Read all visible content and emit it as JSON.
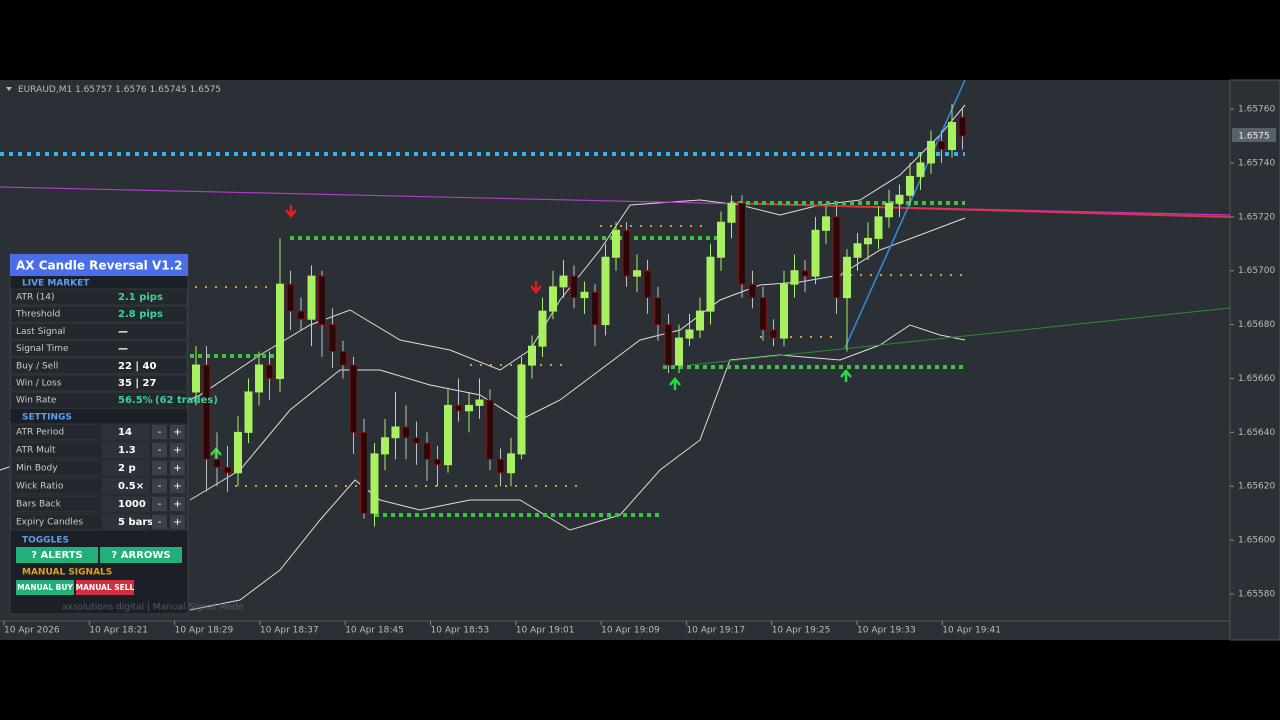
{
  "header": {
    "symbol": "EURAUD,M1"
  },
  "chart": {
    "price_ticks": [
      {
        "value": 1.6576,
        "label": "1.65760"
      },
      {
        "value": 1.6574,
        "label": "1.65740"
      },
      {
        "value": 1.6572,
        "label": "1.65720"
      },
      {
        "value": 1.657,
        "label": "1.65700"
      },
      {
        "value": 1.6568,
        "label": "1.65680"
      },
      {
        "value": 1.6566,
        "label": "1.65660"
      },
      {
        "value": 1.6564,
        "label": "1.65640"
      },
      {
        "value": 1.6562,
        "label": "1.65620"
      },
      {
        "value": 1.656,
        "label": "1.65600"
      },
      {
        "value": 1.6558,
        "label": "1.65580"
      }
    ],
    "time_labels": [
      "10 Apr 2026",
      "10 Apr 18:21",
      "10 Apr 18:29",
      "10 Apr 18:37",
      "10 Apr 18:45",
      "10 Apr 18:53",
      "10 Apr 19:01",
      "10 Apr 19:09",
      "10 Apr 19:17",
      "10 Apr 19:25",
      "10 Apr 19:33",
      "10 Apr 19:41"
    ],
    "candles": [
      [
        1.65655,
        1.65672,
        1.6565,
        1.65665
      ],
      [
        1.65665,
        1.65672,
        1.65618,
        1.6563
      ],
      [
        1.6563,
        1.6564,
        1.6562,
        1.65627
      ],
      [
        1.65627,
        1.65635,
        1.65618,
        1.65625
      ],
      [
        1.65625,
        1.65646,
        1.6562,
        1.6564
      ],
      [
        1.6564,
        1.6566,
        1.65636,
        1.65655
      ],
      [
        1.65655,
        1.6567,
        1.6565,
        1.65665
      ],
      [
        1.65665,
        1.6567,
        1.65652,
        1.6566
      ],
      [
        1.6566,
        1.65712,
        1.65655,
        1.65695
      ],
      [
        1.65695,
        1.657,
        1.65678,
        1.65685
      ],
      [
        1.65685,
        1.6569,
        1.65678,
        1.65682
      ],
      [
        1.65682,
        1.65702,
        1.65672,
        1.65698
      ],
      [
        1.65698,
        1.657,
        1.65668,
        1.6568
      ],
      [
        1.6568,
        1.65686,
        1.65664,
        1.6567
      ],
      [
        1.6567,
        1.65674,
        1.6566,
        1.65665
      ],
      [
        1.65665,
        1.65668,
        1.65632,
        1.6564
      ],
      [
        1.6564,
        1.65645,
        1.65608,
        1.6561
      ],
      [
        1.6561,
        1.65636,
        1.65605,
        1.65632
      ],
      [
        1.65632,
        1.65645,
        1.65626,
        1.65638
      ],
      [
        1.65638,
        1.65655,
        1.6563,
        1.65642
      ],
      [
        1.65642,
        1.6565,
        1.6563,
        1.65638
      ],
      [
        1.65638,
        1.65644,
        1.65628,
        1.65636
      ],
      [
        1.65636,
        1.6564,
        1.65622,
        1.6563
      ],
      [
        1.6563,
        1.65635,
        1.6562,
        1.65628
      ],
      [
        1.65628,
        1.65656,
        1.65625,
        1.6565
      ],
      [
        1.6565,
        1.6566,
        1.65644,
        1.65648
      ],
      [
        1.65648,
        1.65655,
        1.6564,
        1.6565
      ],
      [
        1.6565,
        1.6566,
        1.65645,
        1.65652
      ],
      [
        1.65652,
        1.65656,
        1.65626,
        1.6563
      ],
      [
        1.6563,
        1.65634,
        1.6562,
        1.65625
      ],
      [
        1.65625,
        1.65638,
        1.6562,
        1.65632
      ],
      [
        1.65632,
        1.65668,
        1.6563,
        1.65665
      ],
      [
        1.65665,
        1.65676,
        1.6566,
        1.65672
      ],
      [
        1.65672,
        1.6569,
        1.65668,
        1.65685
      ],
      [
        1.65685,
        1.657,
        1.65682,
        1.65694
      ],
      [
        1.65694,
        1.65704,
        1.6569,
        1.65698
      ],
      [
        1.65698,
        1.65702,
        1.65686,
        1.6569
      ],
      [
        1.6569,
        1.65696,
        1.65684,
        1.65692
      ],
      [
        1.65692,
        1.65695,
        1.65672,
        1.6568
      ],
      [
        1.6568,
        1.6571,
        1.65676,
        1.65705
      ],
      [
        1.65705,
        1.65718,
        1.657,
        1.65715
      ],
      [
        1.65715,
        1.65718,
        1.65694,
        1.65698
      ],
      [
        1.65698,
        1.65706,
        1.65692,
        1.657
      ],
      [
        1.657,
        1.65704,
        1.65684,
        1.6569
      ],
      [
        1.6569,
        1.65694,
        1.65674,
        1.6568
      ],
      [
        1.6568,
        1.65684,
        1.65662,
        1.65665
      ],
      [
        1.65665,
        1.6568,
        1.65662,
        1.65675
      ],
      [
        1.65675,
        1.65684,
        1.65672,
        1.65678
      ],
      [
        1.65678,
        1.6569,
        1.65675,
        1.65685
      ],
      [
        1.65685,
        1.6571,
        1.6568,
        1.65705
      ],
      [
        1.65705,
        1.65722,
        1.657,
        1.65718
      ],
      [
        1.65718,
        1.65728,
        1.65712,
        1.65725
      ],
      [
        1.65725,
        1.65728,
        1.6569,
        1.65695
      ],
      [
        1.65695,
        1.657,
        1.65686,
        1.6569
      ],
      [
        1.6569,
        1.65694,
        1.65674,
        1.65678
      ],
      [
        1.65678,
        1.65682,
        1.65672,
        1.65675
      ],
      [
        1.65675,
        1.657,
        1.65672,
        1.65695
      ],
      [
        1.65695,
        1.65706,
        1.6569,
        1.657
      ],
      [
        1.657,
        1.65704,
        1.65692,
        1.65698
      ],
      [
        1.65698,
        1.6572,
        1.65695,
        1.65715
      ],
      [
        1.65715,
        1.65724,
        1.6571,
        1.6572
      ],
      [
        1.6572,
        1.65724,
        1.65684,
        1.6569
      ],
      [
        1.6569,
        1.65708,
        1.6567,
        1.65705
      ],
      [
        1.65705,
        1.65714,
        1.657,
        1.6571
      ],
      [
        1.6571,
        1.65718,
        1.65704,
        1.65712
      ],
      [
        1.65712,
        1.65724,
        1.65708,
        1.6572
      ],
      [
        1.6572,
        1.6573,
        1.65716,
        1.65725
      ],
      [
        1.65725,
        1.65732,
        1.6572,
        1.65728
      ],
      [
        1.65728,
        1.6574,
        1.65724,
        1.65735
      ],
      [
        1.65735,
        1.65744,
        1.6573,
        1.6574
      ],
      [
        1.6574,
        1.65752,
        1.65736,
        1.65748
      ],
      [
        1.65748,
        1.65752,
        1.6574,
        1.65745
      ],
      [
        1.65745,
        1.65762,
        1.65742,
        1.65755
      ],
      [
        1.65757,
        1.6576,
        1.65745,
        1.6575
      ]
    ]
  },
  "panel": {
    "title": "AX Candle Reversal V1.2",
    "live_title": "LIVE MARKET",
    "live": [
      {
        "label": "ATR (14)",
        "value": "2.1 pips"
      },
      {
        "label": "Threshold",
        "value": "2.8 pips"
      },
      {
        "label": "Last Signal",
        "value": "—"
      },
      {
        "label": "Signal Time",
        "value": "—"
      },
      {
        "label": "Buy / Sell",
        "value": "22 | 40"
      },
      {
        "label": "Win / Loss",
        "value": "35 | 27"
      },
      {
        "label": "Win Rate",
        "value": "56.5%",
        "note": "(62 trades)"
      }
    ],
    "settings_title": "SETTINGS",
    "settings": [
      {
        "label": "ATR Period",
        "value": "14"
      },
      {
        "label": "ATR Mult",
        "value": "1.3"
      },
      {
        "label": "Min Body",
        "value": "2 p"
      },
      {
        "label": "Wick Ratio",
        "value": "0.5×"
      },
      {
        "label": "Bars Back",
        "value": "1000"
      },
      {
        "label": "Expiry Candles",
        "value": "5 bars"
      }
    ],
    "minus": "-",
    "plus": "+",
    "toggles_title": "TOGGLES",
    "toggles": [
      "? ALERTS",
      "? ARROWS"
    ],
    "manual_title": "MANUAL SIGNALS",
    "manual_buy": "MANUAL BUY",
    "manual_sell": "MANUAL SELL",
    "footer": "axsolutions digital  |  Manual Signal Mode"
  }
}
